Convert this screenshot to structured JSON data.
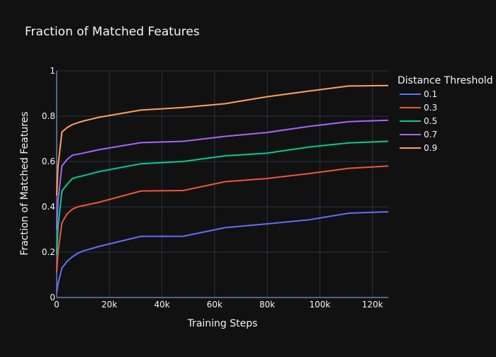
{
  "chart_data": {
    "type": "line",
    "title": "Fraction of Matched Features",
    "xlabel": "Training Steps",
    "ylabel": "Fraction of Matched Features",
    "xlim": [
      0,
      126000
    ],
    "ylim": [
      0,
      1
    ],
    "x_ticks": [
      0,
      20000,
      40000,
      60000,
      80000,
      100000,
      120000
    ],
    "x_tick_labels": [
      "0",
      "20k",
      "40k",
      "60k",
      "80k",
      "100k",
      "120k"
    ],
    "y_ticks": [
      0,
      0.2,
      0.4,
      0.6,
      0.8,
      1
    ],
    "y_tick_labels": [
      "0",
      "0.2",
      "0.4",
      "0.6",
      "0.8",
      "1"
    ],
    "grid": true,
    "legend_title": "Distance Threshold",
    "legend_position": "top-right",
    "x": [
      0,
      500,
      2000,
      4000,
      6000,
      8000,
      10000,
      16000,
      32000,
      48000,
      64000,
      80000,
      96000,
      111000,
      126000
    ],
    "series": [
      {
        "name": "0.1",
        "color": "#636efa",
        "values": [
          0.02,
          0.06,
          0.13,
          0.16,
          0.18,
          0.195,
          0.205,
          0.225,
          0.27,
          0.27,
          0.308,
          0.325,
          0.343,
          0.372,
          0.378
        ]
      },
      {
        "name": "0.3",
        "color": "#ef553b",
        "values": [
          0.11,
          0.2,
          0.33,
          0.37,
          0.39,
          0.4,
          0.405,
          0.42,
          0.47,
          0.472,
          0.511,
          0.525,
          0.547,
          0.57,
          0.58
        ]
      },
      {
        "name": "0.5",
        "color": "#00cc96",
        "values": [
          0.19,
          0.31,
          0.47,
          0.5,
          0.525,
          0.532,
          0.537,
          0.555,
          0.59,
          0.6,
          0.625,
          0.637,
          0.664,
          0.682,
          0.689
        ]
      },
      {
        "name": "0.7",
        "color": "#ab63fa",
        "values": [
          0.3,
          0.43,
          0.58,
          0.61,
          0.628,
          0.632,
          0.637,
          0.652,
          0.683,
          0.689,
          0.711,
          0.728,
          0.755,
          0.776,
          0.782
        ]
      },
      {
        "name": "0.9",
        "color": "#ffa15a",
        "values": [
          0.45,
          0.58,
          0.73,
          0.75,
          0.763,
          0.771,
          0.778,
          0.795,
          0.827,
          0.838,
          0.855,
          0.886,
          0.911,
          0.933,
          0.935
        ]
      }
    ]
  }
}
